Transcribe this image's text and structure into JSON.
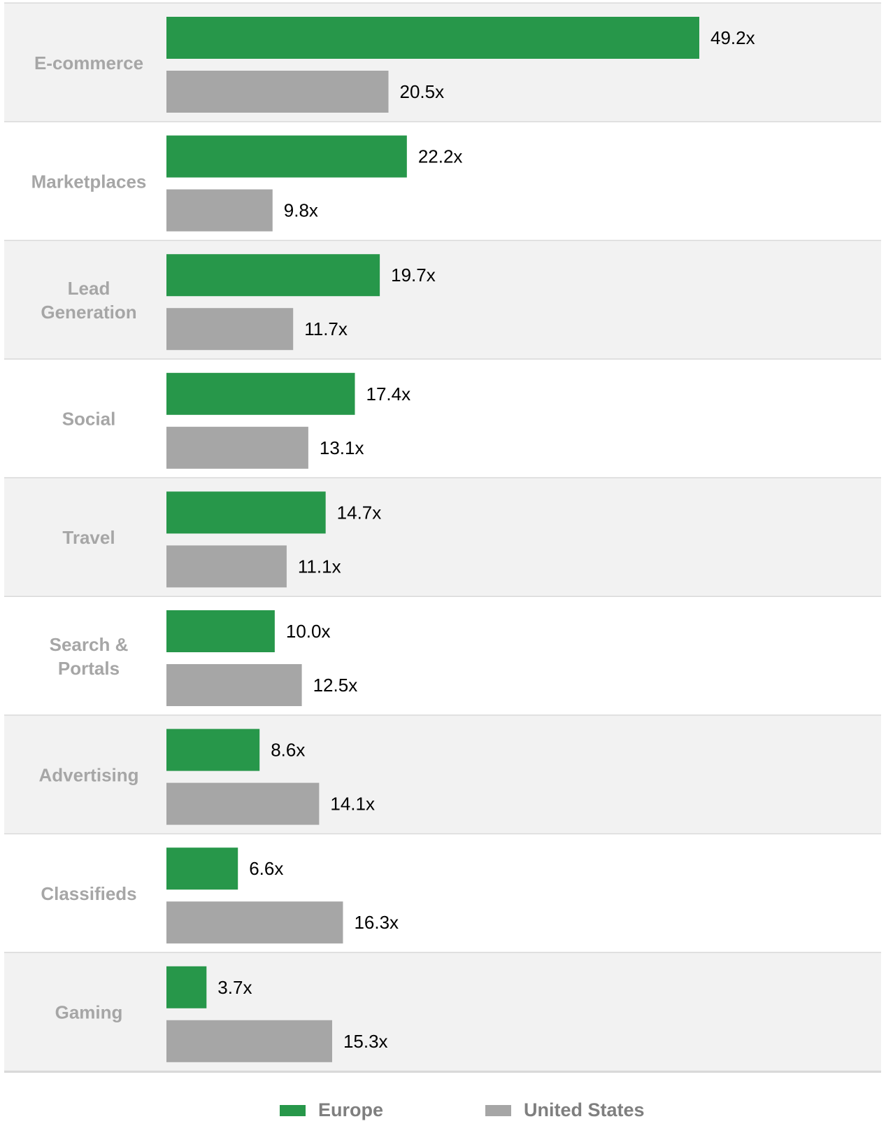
{
  "chart_data": {
    "type": "bar",
    "orientation": "horizontal",
    "categories": [
      "E-commerce",
      "Marketplaces",
      "Lead Generation",
      "Social",
      "Travel",
      "Search & Portals",
      "Advertising",
      "Classifieds",
      "Gaming"
    ],
    "category_lines": [
      [
        "E-commerce"
      ],
      [
        "Marketplaces"
      ],
      [
        "Lead",
        "Generation"
      ],
      [
        "Social"
      ],
      [
        "Travel"
      ],
      [
        "Search &",
        "Portals"
      ],
      [
        "Advertising"
      ],
      [
        "Classifieds"
      ],
      [
        "Gaming"
      ]
    ],
    "series": [
      {
        "name": "Europe",
        "color": "#27974a",
        "values": [
          49.2,
          22.2,
          19.7,
          17.4,
          14.7,
          10.0,
          8.6,
          6.6,
          3.7
        ],
        "labels": [
          "49.2x",
          "22.2x",
          "19.7x",
          "17.4x",
          "14.7x",
          "10.0x",
          "8.6x",
          "6.6x",
          "3.7x"
        ]
      },
      {
        "name": "United States",
        "color": "#a6a6a6",
        "values": [
          20.5,
          9.8,
          11.7,
          13.1,
          11.1,
          12.5,
          14.1,
          16.3,
          15.3
        ],
        "labels": [
          "20.5x",
          "9.8x",
          "11.7x",
          "13.1x",
          "11.1x",
          "12.5x",
          "14.1x",
          "16.3x",
          "15.3x"
        ]
      }
    ],
    "xlim": [
      0,
      50
    ],
    "band_colors": [
      "#f2f2f2",
      "#ffffff"
    ],
    "separator_color": "#d9d9d9",
    "legend_position": "bottom",
    "grid": false
  }
}
